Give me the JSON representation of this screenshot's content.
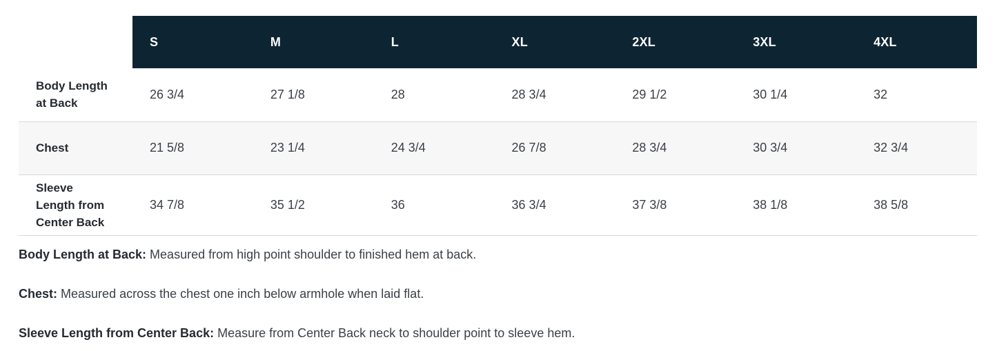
{
  "table": {
    "columns": [
      "S",
      "M",
      "L",
      "XL",
      "2XL",
      "3XL",
      "4XL"
    ],
    "rows": [
      {
        "label": "Body Length at Back",
        "values": [
          "26 3/4",
          "27 1/8",
          "28",
          "28 3/4",
          "29 1/2",
          "30 1/4",
          "32"
        ]
      },
      {
        "label": "Chest",
        "values": [
          "21 5/8",
          "23 1/4",
          "24 3/4",
          "26 7/8",
          "28 3/4",
          "30 3/4",
          "32 3/4"
        ]
      },
      {
        "label": "Sleeve Length from Center Back",
        "values": [
          "34 7/8",
          "35 1/2",
          "36",
          "36 3/4",
          "37 3/8",
          "38 1/8",
          "38 5/8"
        ]
      }
    ]
  },
  "notes": [
    {
      "term": "Body Length at Back:",
      "description": "Measured from high point shoulder to finished hem at back."
    },
    {
      "term": "Chest:",
      "description": "Measured across the chest one inch below armhole when laid flat."
    },
    {
      "term": "Sleeve Length from Center Back:",
      "description": "Measure from Center Back neck to shoulder point to sleeve hem."
    }
  ],
  "colors": {
    "header_bg": "#0d2433",
    "header_text": "#ffffff",
    "label_text": "#262b31",
    "value_text": "#3a3f46",
    "row_stripe": "#f7f7f7",
    "divider": "#d6d8da",
    "note_text": "#3a4046"
  }
}
